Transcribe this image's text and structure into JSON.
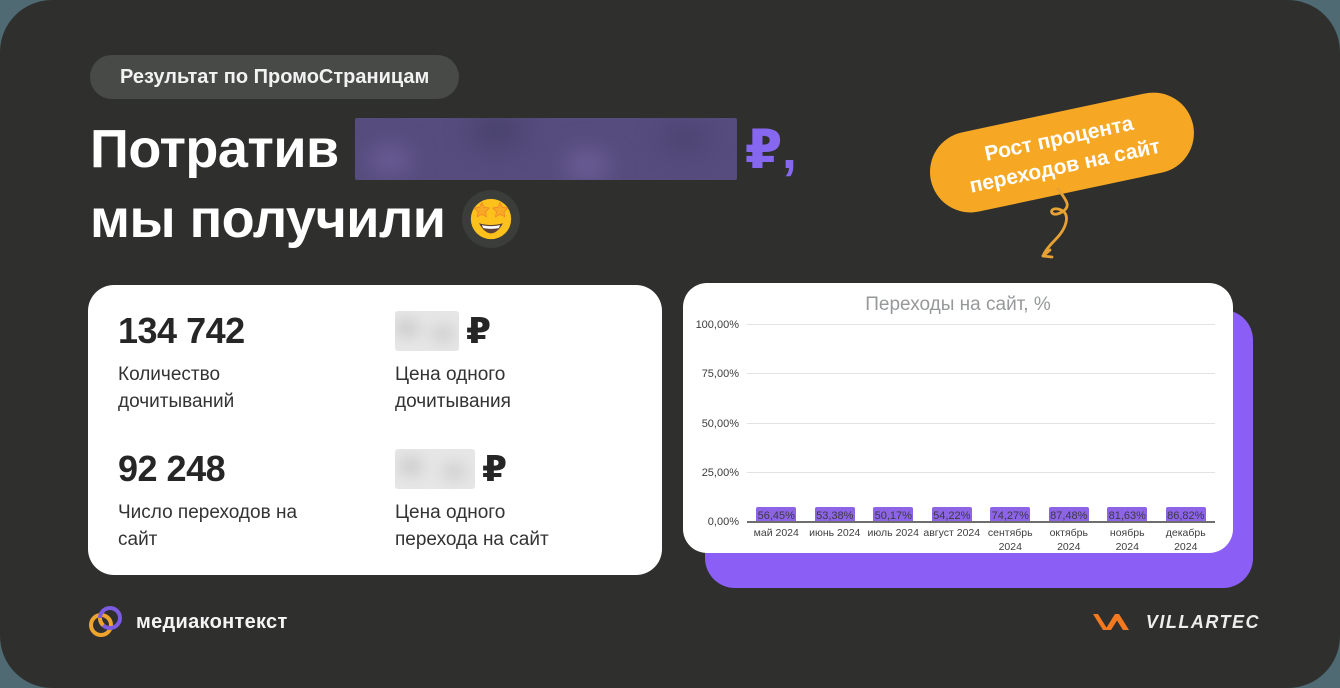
{
  "colors": {
    "slide_background": "#2F302E",
    "outer_background": "#4F6A73",
    "accent_purple": "#8667F0",
    "chart_panel_purple": "#8B5EF6",
    "bar_purple": "#8E64E6",
    "callout_orange": "#F6A825",
    "card_white": "#FFFFFF"
  },
  "badge": {
    "label": "Результат по ПромоСтраницам"
  },
  "headline": {
    "line1_prefix": "Потратив",
    "currency": "₽,",
    "line2": "мы получили",
    "emoji_icon": "star-struck"
  },
  "callout": {
    "line1": "Рост процента",
    "line2": "переходов на сайт"
  },
  "stats": {
    "items": [
      {
        "value": "134 742",
        "label": "Количество дочитываний"
      },
      {
        "currency": "₽",
        "label": "Цена одного дочитывания"
      },
      {
        "value": "92 248",
        "label": "Число переходов на сайт"
      },
      {
        "currency": "₽",
        "label": "Цена одного перехода на сайт"
      }
    ]
  },
  "chart_data": {
    "type": "bar",
    "title": "Переходы на сайт, %",
    "categories": [
      "май 2024",
      "июнь 2024",
      "июль 2024",
      "август 2024",
      "сентябрь 2024",
      "октябрь 2024",
      "ноябрь 2024",
      "декабрь 2024"
    ],
    "values": [
      56.45,
      53.38,
      50.17,
      54.22,
      74.27,
      87.48,
      81.63,
      86.82
    ],
    "bar_labels": [
      "56,45%",
      "53,38%",
      "50,17%",
      "54,22%",
      "74,27%",
      "87,48%",
      "81,63%",
      "86,82%"
    ],
    "y_ticks": [
      "100,00%",
      "75,00%",
      "50,00%",
      "25,00%",
      "0,00%"
    ],
    "ylim": [
      0,
      100
    ],
    "xlabel": "",
    "ylabel": "",
    "grid": true,
    "legend": "none",
    "bar_color": "#8E64E6"
  },
  "footer": {
    "left_brand": "медиаконтекст",
    "right_brand": "VILLARTEC"
  }
}
